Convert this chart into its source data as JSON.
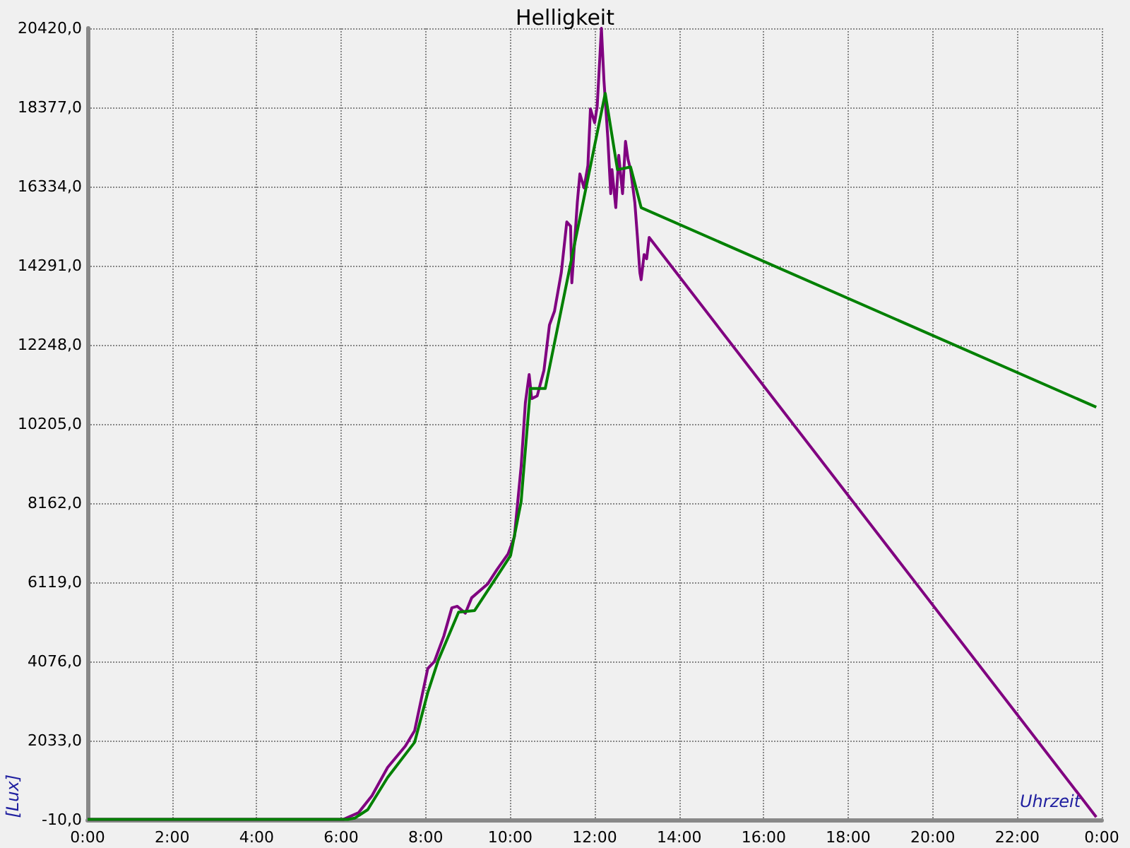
{
  "chart_data": {
    "type": "line",
    "title": "Helligkeit",
    "xlabel": "Uhrzeit",
    "ylabel": "[Lux]",
    "xlim": [
      0,
      24
    ],
    "ylim": [
      -10,
      20420
    ],
    "xticks": [
      {
        "value": 0,
        "label": "0:00"
      },
      {
        "value": 2,
        "label": "2:00"
      },
      {
        "value": 4,
        "label": "4:00"
      },
      {
        "value": 6,
        "label": "6:00"
      },
      {
        "value": 8,
        "label": "8:00"
      },
      {
        "value": 10,
        "label": "10:00"
      },
      {
        "value": 12,
        "label": "12:00"
      },
      {
        "value": 14,
        "label": "14:00"
      },
      {
        "value": 16,
        "label": "16:00"
      },
      {
        "value": 18,
        "label": "18:00"
      },
      {
        "value": 20,
        "label": "20:00"
      },
      {
        "value": 22,
        "label": "22:00"
      },
      {
        "value": 24,
        "label": "0:00"
      }
    ],
    "yticks": [
      {
        "value": -10,
        "label": "-10,0"
      },
      {
        "value": 2033,
        "label": "2033,0"
      },
      {
        "value": 4076,
        "label": "4076,0"
      },
      {
        "value": 6119,
        "label": "6119,0"
      },
      {
        "value": 8162,
        "label": "8162,0"
      },
      {
        "value": 10205,
        "label": "10205,0"
      },
      {
        "value": 12248,
        "label": "12248,0"
      },
      {
        "value": 14291,
        "label": "14291,0"
      },
      {
        "value": 16334,
        "label": "16334,0"
      },
      {
        "value": 18377,
        "label": "18377,0"
      },
      {
        "value": 20420,
        "label": "20420,0"
      }
    ],
    "grid": true,
    "marker": "none",
    "line_style": "solid",
    "series": [
      {
        "color": "#800080",
        "x": [
          0,
          6.06,
          6.41,
          6.73,
          7.1,
          7.52,
          7.74,
          8.05,
          8.21,
          8.43,
          8.62,
          8.75,
          8.94,
          9.09,
          9.47,
          9.69,
          9.95,
          10.1,
          10.26,
          10.36,
          10.45,
          10.51,
          10.64,
          10.8,
          10.93,
          11.05,
          11.21,
          11.34,
          11.43,
          11.46,
          11.59,
          11.65,
          11.75,
          11.84,
          11.9,
          12.0,
          12.06,
          12.16,
          12.22,
          12.31,
          12.38,
          12.41,
          12.5,
          12.57,
          12.66,
          12.73,
          12.79,
          12.85,
          12.95,
          13.01,
          13.07,
          13.1,
          13.17,
          13.23,
          13.29,
          23.87
        ],
        "values": [
          0,
          0,
          170,
          610,
          1340,
          1890,
          2290,
          3890,
          4080,
          4730,
          5460,
          5500,
          5320,
          5720,
          6080,
          6450,
          6850,
          7290,
          9110,
          10750,
          11480,
          10860,
          10930,
          11590,
          12760,
          13120,
          14110,
          15420,
          15310,
          13850,
          15930,
          16660,
          16300,
          16880,
          18340,
          17980,
          18410,
          20420,
          19070,
          17610,
          16150,
          16770,
          15790,
          17140,
          16150,
          17500,
          17030,
          16770,
          15930,
          15060,
          14110,
          13930,
          14580,
          14470,
          15020,
          60
        ]
      },
      {
        "color": "#008000",
        "x": [
          0,
          6.16,
          6.32,
          6.63,
          7.1,
          7.74,
          8.05,
          8.3,
          8.78,
          9.16,
          9.69,
          10.01,
          10.26,
          10.48,
          10.83,
          12.25,
          12.54,
          12.85,
          13.1,
          23.87
        ],
        "values": [
          0,
          0,
          30,
          250,
          1080,
          1990,
          3270,
          4110,
          5350,
          5390,
          6270,
          6810,
          8200,
          11120,
          11120,
          18740,
          16770,
          16840,
          15790,
          10640
        ]
      }
    ]
  }
}
